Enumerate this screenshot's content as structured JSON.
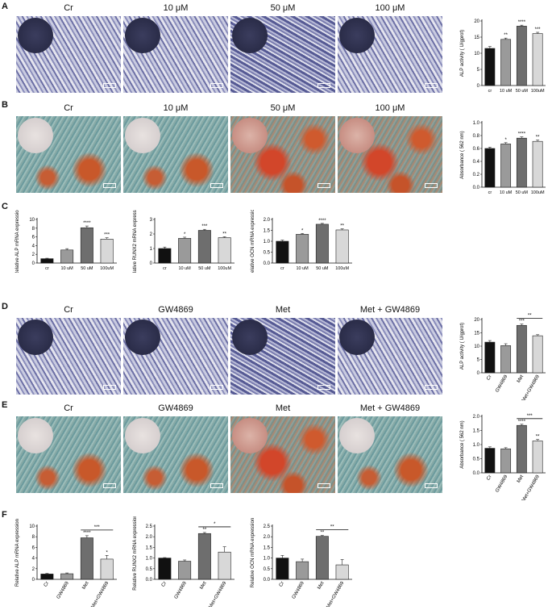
{
  "panels": {
    "A": {
      "label": "A",
      "headers": [
        "Cr",
        "10 μM",
        "50 μM",
        "100 μM"
      ]
    },
    "B": {
      "label": "B",
      "headers": [
        "Cr",
        "10 μM",
        "50 μM",
        "100 μM"
      ]
    },
    "C": {
      "label": "C"
    },
    "D": {
      "label": "D",
      "headers": [
        "Cr",
        "GW4869",
        "Met",
        "Met + GW4869"
      ]
    },
    "E": {
      "label": "E",
      "headers": [
        "Cr",
        "GW4869",
        "Met",
        "Met + GW4869"
      ]
    },
    "F": {
      "label": "F"
    }
  },
  "chart_data": [
    {
      "id": "A",
      "type": "bar",
      "categories": [
        "cr",
        "10 uM",
        "50 uM",
        "100uM"
      ],
      "values": [
        11.5,
        14.3,
        18.4,
        16.1
      ],
      "errors": [
        0.6,
        0.4,
        0.3,
        0.4
      ],
      "sig": [
        "",
        "**",
        "****",
        "***"
      ],
      "ylabel": "ALP activity ( U/gprot)",
      "ylim": [
        0,
        20
      ],
      "ticks": [
        0,
        5,
        10,
        15,
        20
      ]
    },
    {
      "id": "B",
      "type": "bar",
      "categories": [
        "cr",
        "10 uM",
        "50 uM",
        "100uM"
      ],
      "values": [
        0.6,
        0.67,
        0.76,
        0.71
      ],
      "errors": [
        0.02,
        0.02,
        0.02,
        0.02
      ],
      "sig": [
        "",
        "*",
        "****",
        "**"
      ],
      "ylabel": "Absorbance ( 562 nm)",
      "ylim": [
        0,
        1.0
      ],
      "ticks": [
        "0.0",
        "0.2",
        "0.4",
        "0.6",
        "0.8",
        "1.0"
      ]
    },
    {
      "id": "C1",
      "type": "bar",
      "categories": [
        "cr",
        "10 uM",
        "50 uM",
        "100uM"
      ],
      "values": [
        1.0,
        3.0,
        8.1,
        5.5
      ],
      "errors": [
        0.1,
        0.3,
        0.4,
        0.3
      ],
      "sig": [
        "",
        "",
        "****",
        "***"
      ],
      "ylabel": "Relative ALP mRNA expression",
      "ylim": [
        0,
        10
      ],
      "ticks": [
        0,
        2,
        4,
        6,
        8,
        10
      ]
    },
    {
      "id": "C2",
      "type": "bar",
      "categories": [
        "cr",
        "10 uM",
        "50 uM",
        "100uM"
      ],
      "values": [
        1.0,
        1.7,
        2.25,
        1.75
      ],
      "errors": [
        0.1,
        0.08,
        0.07,
        0.06
      ],
      "sig": [
        "",
        "*",
        "***",
        "**"
      ],
      "ylabel": "Relative RUNX2 mRNA expression",
      "ylim": [
        0,
        3
      ],
      "ticks": [
        0,
        1,
        2,
        3
      ]
    },
    {
      "id": "C3",
      "type": "bar",
      "categories": [
        "cr",
        "10 uM",
        "50 uM",
        "100uM"
      ],
      "values": [
        1.0,
        1.32,
        1.78,
        1.52
      ],
      "errors": [
        0.05,
        0.04,
        0.04,
        0.05
      ],
      "sig": [
        "",
        "*",
        "****",
        "**"
      ],
      "ylabel": "Relative OCN mRNA expression",
      "ylim": [
        0,
        2.0
      ],
      "ticks": [
        "0.0",
        "0.5",
        "1.0",
        "1.5",
        "2.0"
      ]
    },
    {
      "id": "D",
      "type": "bar",
      "categories": [
        "Cr",
        "GW4869",
        "Met",
        "Met+GW4869"
      ],
      "values": [
        11.5,
        10.2,
        17.8,
        13.9
      ],
      "errors": [
        0.6,
        0.7,
        0.5,
        0.4
      ],
      "sig": [
        "",
        "",
        "***",
        ""
      ],
      "bracket": {
        "from": 2,
        "to": 3,
        "text": "**"
      },
      "ylabel": "ALP activity ( U/gprot)",
      "ylim": [
        0,
        20
      ],
      "ticks": [
        0,
        5,
        10,
        15,
        20
      ]
    },
    {
      "id": "E",
      "type": "bar",
      "categories": [
        "Cr",
        "GW4869",
        "Met",
        "Met+GW4869"
      ],
      "values": [
        0.87,
        0.85,
        1.68,
        1.13
      ],
      "errors": [
        0.05,
        0.04,
        0.04,
        0.05
      ],
      "sig": [
        "",
        "",
        "****",
        "**"
      ],
      "bracket": {
        "from": 2,
        "to": 3,
        "text": "***"
      },
      "ylabel": "Absorbance ( 562 nm)",
      "ylim": [
        0,
        2.0
      ],
      "ticks": [
        "0.0",
        "0.5",
        "1.0",
        "1.5",
        "2.0"
      ]
    },
    {
      "id": "F1",
      "type": "bar",
      "categories": [
        "Cr",
        "GW4869",
        "Met",
        "Met+GW4869"
      ],
      "values": [
        1.0,
        1.05,
        7.8,
        3.8
      ],
      "errors": [
        0.1,
        0.15,
        0.4,
        0.7
      ],
      "sig": [
        "",
        "",
        "****",
        "*"
      ],
      "bracket": {
        "from": 2,
        "to": 3,
        "text": "***"
      },
      "ylabel": "Relative ALP mRNA expression",
      "ylim": [
        0,
        10
      ],
      "ticks": [
        0,
        2,
        4,
        6,
        8,
        10
      ]
    },
    {
      "id": "F2",
      "type": "bar",
      "categories": [
        "Cr",
        "GW4869",
        "Met",
        "Met+GW4869"
      ],
      "values": [
        1.0,
        0.85,
        2.15,
        1.28
      ],
      "errors": [
        0.02,
        0.06,
        0.05,
        0.25
      ],
      "sig": [
        "",
        "",
        "**",
        ""
      ],
      "bracket": {
        "from": 2,
        "to": 3,
        "text": "*"
      },
      "ylabel": "Relative RUNX2 mRNA expression",
      "ylim": [
        0,
        2.5
      ],
      "ticks": [
        "0.0",
        "0.5",
        "1.0",
        "1.5",
        "2.0",
        "2.5"
      ]
    },
    {
      "id": "F3",
      "type": "bar",
      "categories": [
        "Cr",
        "GW4869",
        "Met",
        "Met+GW4869"
      ],
      "values": [
        1.0,
        0.83,
        2.02,
        0.68
      ],
      "errors": [
        0.12,
        0.12,
        0.04,
        0.25
      ],
      "sig": [
        "",
        "",
        "**",
        ""
      ],
      "bracket": {
        "from": 2,
        "to": 3,
        "text": "**"
      },
      "ylabel": "Relative OCN mRNA expression",
      "ylim": [
        0,
        2.5
      ],
      "ticks": [
        "0.0",
        "0.5",
        "1.0",
        "1.5",
        "2.0",
        "2.5"
      ]
    }
  ]
}
